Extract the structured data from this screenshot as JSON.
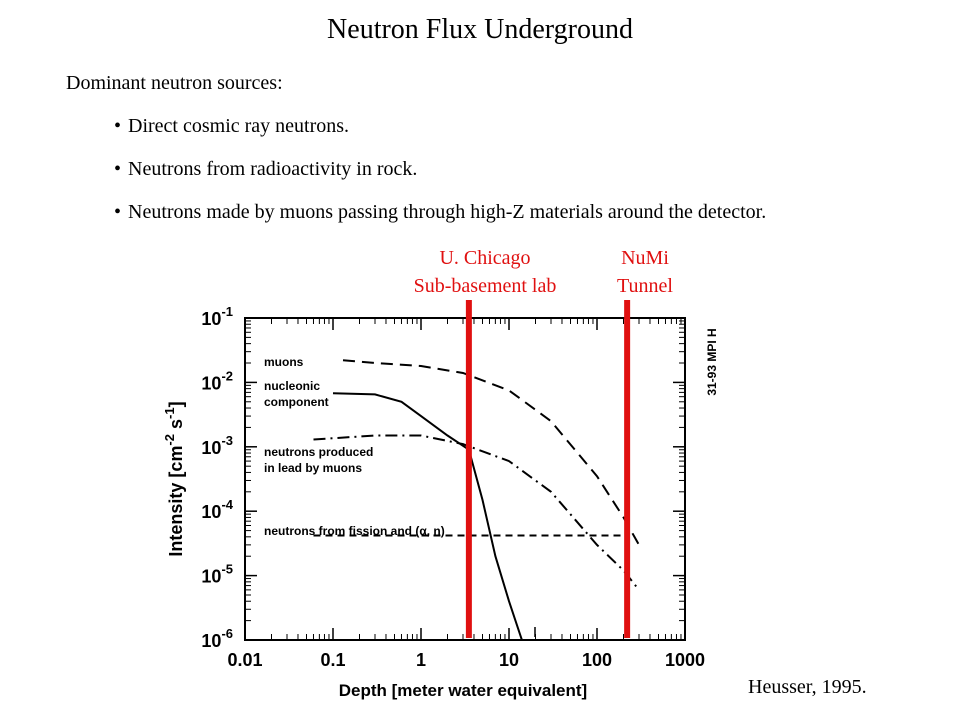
{
  "slide": {
    "title": "Neutron Flux Underground",
    "intro": "Dominant neutron sources:",
    "bullets": [
      "Direct cosmic ray neutrons.",
      "Neutrons from radioactivity in rock.",
      "Neutrons made by muons passing through high-Z materials around the detector."
    ],
    "markers": [
      {
        "line1": "U. Chicago",
        "line2": "Sub-basement lab",
        "depth": 3.5
      },
      {
        "line1": "NuMi",
        "line2": "Tunnel",
        "depth": 220
      }
    ],
    "credit": "Heusser, 1995.",
    "marker_color": "#e01010"
  },
  "chart_data": {
    "type": "line",
    "x_scale": "log",
    "y_scale": "log",
    "xlim": [
      0.01,
      1000
    ],
    "ylim": [
      1e-06,
      0.1
    ],
    "x_ticks": [
      "0.01",
      "0.1",
      "1",
      "10",
      "100",
      "1000"
    ],
    "y_ticks": [
      {
        "base": "10",
        "exp": "-1"
      },
      {
        "base": "10",
        "exp": "-2"
      },
      {
        "base": "10",
        "exp": "-3"
      },
      {
        "base": "10",
        "exp": "-4"
      },
      {
        "base": "10",
        "exp": "-5"
      },
      {
        "base": "10",
        "exp": "-6"
      }
    ],
    "xlabel": {
      "main": "Depth",
      "unit": "meter water equivalent"
    },
    "ylabel": {
      "main": "Intensity",
      "unit_base": "cm",
      "unit_exp1": "-2",
      "unit_mid": " s",
      "unit_exp2": "-1"
    },
    "corner_text": "31-93 MPI H",
    "series": [
      {
        "name": "muons",
        "dash": "12,7",
        "label_lines": [
          "muons"
        ],
        "x": [
          0.13,
          0.3,
          1,
          3,
          10,
          30,
          100,
          200,
          300
        ],
        "y": [
          0.022,
          0.02,
          0.018,
          0.014,
          0.0075,
          0.0025,
          0.00035,
          8e-05,
          3e-05
        ]
      },
      {
        "name": "nucleonic component",
        "dash": "",
        "label_lines": [
          "nucleonic",
          "component"
        ],
        "x": [
          0.1,
          0.3,
          0.6,
          1,
          2,
          3.5,
          5,
          7,
          10,
          14
        ],
        "y": [
          0.0068,
          0.0065,
          0.005,
          0.003,
          0.0015,
          0.0009,
          0.00015,
          2e-05,
          4e-06,
          1e-06
        ]
      },
      {
        "name": "neutrons produced in lead by muons",
        "dash": "12,5,2,5",
        "label_lines": [
          "neutrons produced",
          "in lead by muons"
        ],
        "x": [
          0.06,
          0.3,
          1,
          3,
          10,
          30,
          100,
          200,
          300
        ],
        "y": [
          0.0013,
          0.0015,
          0.0015,
          0.0011,
          0.0006,
          0.0002,
          3e-05,
          1.2e-05,
          6e-06
        ]
      },
      {
        "name": "neutrons from fission and (α, n)",
        "dash": "7,5",
        "label_lines": [
          "neutrons from fission and (α, n)"
        ],
        "x": [
          0.06,
          1,
          10,
          100,
          200
        ],
        "y": [
          4.2e-05,
          4.2e-05,
          4.2e-05,
          4.2e-05,
          4.2e-05
        ]
      }
    ]
  }
}
